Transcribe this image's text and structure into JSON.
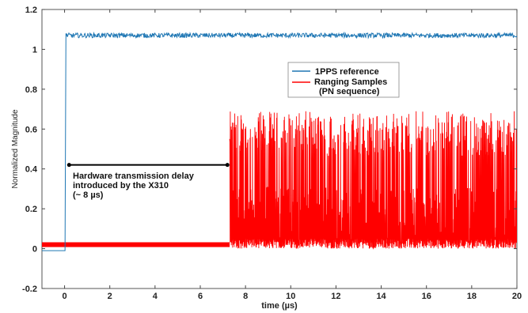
{
  "chart_data": {
    "type": "line",
    "xlabel": "time (µs)",
    "ylabel": "Normalized Magnitude",
    "xlim": [
      -1,
      20
    ],
    "ylim": [
      -0.2,
      1.2
    ],
    "xticks": [
      "0",
      "2",
      "4",
      "6",
      "8",
      "10",
      "12",
      "14",
      "16",
      "18",
      "20"
    ],
    "yticks": [
      "-0.2",
      "0",
      "0.2",
      "0.4",
      "0.6",
      "0.8",
      "1",
      "1.2"
    ],
    "grid": false,
    "legend_position": "top-right",
    "series": [
      {
        "name": "1PPS reference",
        "color": "#1f77b4",
        "points": [
          [
            -1,
            -0.01
          ],
          [
            0.02,
            -0.01
          ],
          [
            0.05,
            0.6
          ],
          [
            0.08,
            1.07
          ],
          [
            20,
            1.07
          ]
        ],
        "noise_amplitude": 0.012
      },
      {
        "name": "Ranging Samples\n(PN sequence)",
        "color": "#ff0000",
        "points": [
          [
            -1,
            0.02
          ],
          [
            7.3,
            0.02
          ],
          [
            7.3,
            0.0
          ],
          [
            20,
            0.0
          ]
        ],
        "burst_range": [
          0.0,
          0.69
        ],
        "burst_start": 7.3
      }
    ],
    "annotation": {
      "lines": [
        "Hardware transmission delay",
        "introduced by the X310",
        "(~ 8 µs)"
      ],
      "arrow_from": [
        0.2,
        0.42
      ],
      "arrow_to": [
        7.2,
        0.42
      ]
    }
  }
}
